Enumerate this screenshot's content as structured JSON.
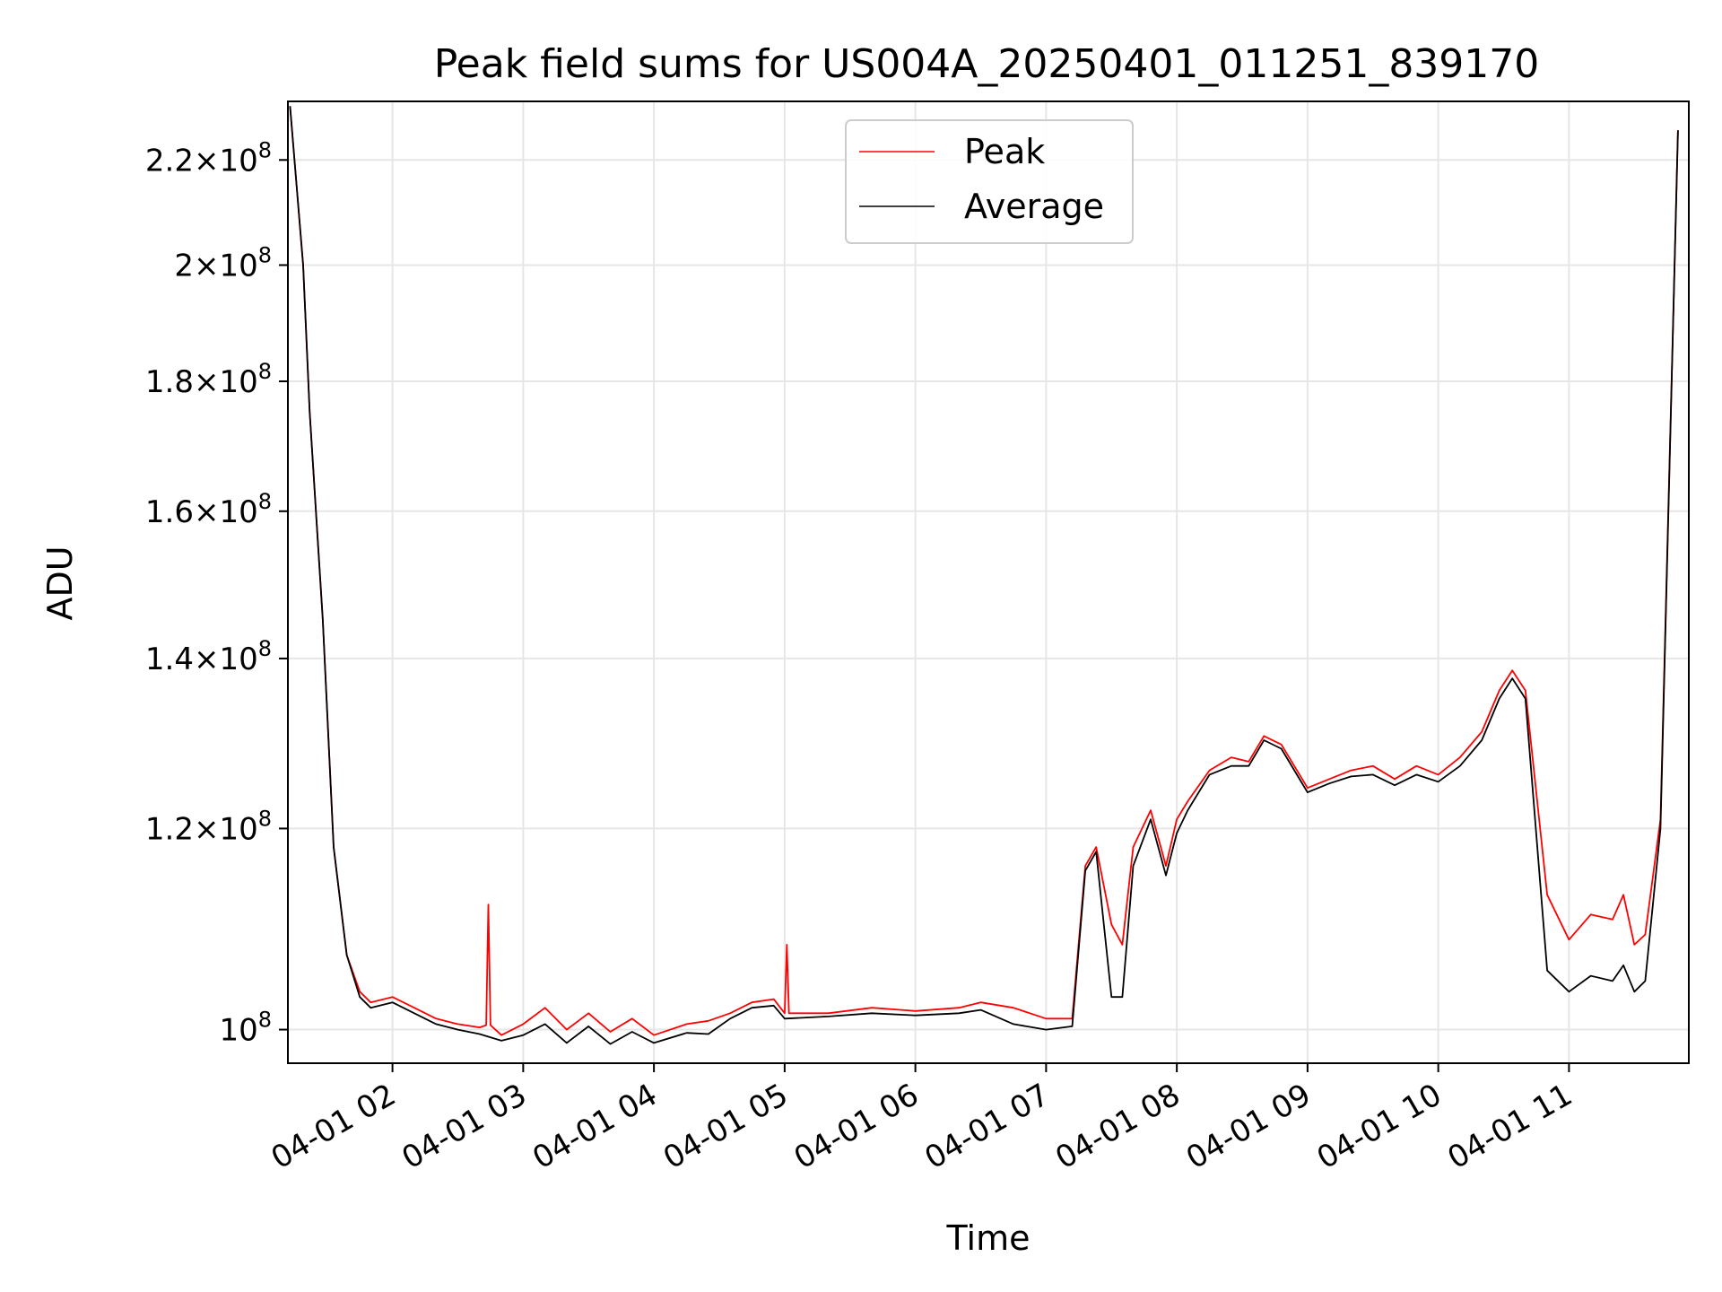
{
  "chart_data": {
    "type": "line",
    "title": "Peak field sums for US004A_20250401_011251_839170",
    "xlabel": "Time",
    "ylabel": "ADU",
    "y_scale": "log",
    "xlim": [
      "2025-04-01 01:12",
      "2025-04-01 11:55"
    ],
    "ylim": [
      97000000,
      232000000
    ],
    "grid": true,
    "legend_position": "top-center",
    "x_ticks": [
      "04-01 02",
      "04-01 03",
      "04-01 04",
      "04-01 05",
      "04-01 06",
      "04-01 07",
      "04-01 08",
      "04-01 09",
      "04-01 10",
      "04-01 11"
    ],
    "y_ticks": [
      {
        "value": 100000000,
        "mantissa": "",
        "exp": "8"
      },
      {
        "value": 120000000,
        "mantissa": "1.2",
        "exp": "8"
      },
      {
        "value": 140000000,
        "mantissa": "1.4",
        "exp": "8"
      },
      {
        "value": 160000000,
        "mantissa": "1.6",
        "exp": "8"
      },
      {
        "value": 180000000,
        "mantissa": "1.8",
        "exp": "8"
      },
      {
        "value": 200000000,
        "mantissa": "2",
        "exp": "8"
      },
      {
        "value": 220000000,
        "mantissa": "2.2",
        "exp": "8"
      }
    ],
    "series": [
      {
        "name": "Peak",
        "color": "#ff0000",
        "x": [
          "2025-04-01 01:13",
          "2025-04-01 01:19",
          "2025-04-01 01:22",
          "2025-04-01 01:28",
          "2025-04-01 01:33",
          "2025-04-01 01:39",
          "2025-04-01 01:45",
          "2025-04-01 01:50",
          "2025-04-01 02:00",
          "2025-04-01 02:10",
          "2025-04-01 02:20",
          "2025-04-01 02:30",
          "2025-04-01 02:40",
          "2025-04-01 02:43",
          "2025-04-01 02:44",
          "2025-04-01 02:45",
          "2025-04-01 02:50",
          "2025-04-01 03:00",
          "2025-04-01 03:10",
          "2025-04-01 03:20",
          "2025-04-01 03:30",
          "2025-04-01 03:40",
          "2025-04-01 03:50",
          "2025-04-01 04:00",
          "2025-04-01 04:15",
          "2025-04-01 04:25",
          "2025-04-01 04:35",
          "2025-04-01 04:45",
          "2025-04-01 04:55",
          "2025-04-01 05:00",
          "2025-04-01 05:01",
          "2025-04-01 05:02",
          "2025-04-01 05:20",
          "2025-04-01 05:40",
          "2025-04-01 06:00",
          "2025-04-01 06:20",
          "2025-04-01 06:30",
          "2025-04-01 06:45",
          "2025-04-01 07:00",
          "2025-04-01 07:12",
          "2025-04-01 07:18",
          "2025-04-01 07:23",
          "2025-04-01 07:30",
          "2025-04-01 07:35",
          "2025-04-01 07:40",
          "2025-04-01 07:48",
          "2025-04-01 07:55",
          "2025-04-01 08:00",
          "2025-04-01 08:05",
          "2025-04-01 08:15",
          "2025-04-01 08:25",
          "2025-04-01 08:33",
          "2025-04-01 08:40",
          "2025-04-01 08:48",
          "2025-04-01 09:00",
          "2025-04-01 09:10",
          "2025-04-01 09:20",
          "2025-04-01 09:30",
          "2025-04-01 09:40",
          "2025-04-01 09:50",
          "2025-04-01 10:00",
          "2025-04-01 10:10",
          "2025-04-01 10:20",
          "2025-04-01 10:28",
          "2025-04-01 10:34",
          "2025-04-01 10:40",
          "2025-04-01 10:50",
          "2025-04-01 11:00",
          "2025-04-01 11:10",
          "2025-04-01 11:20",
          "2025-04-01 11:25",
          "2025-04-01 11:30",
          "2025-04-01 11:35",
          "2025-04-01 11:42",
          "2025-04-01 11:50"
        ],
        "y": [
          231000000,
          200000000,
          175000000,
          145000000,
          118000000,
          107000000,
          103500000,
          102500000,
          103000000,
          102000000,
          101000000,
          100500000,
          100200000,
          100400000,
          112000000,
          100400000,
          99500000,
          100500000,
          102000000,
          100000000,
          101500000,
          99800000,
          101000000,
          99500000,
          100500000,
          100800000,
          101500000,
          102500000,
          102800000,
          101500000,
          108000000,
          101500000,
          101500000,
          102000000,
          101700000,
          102000000,
          102500000,
          102000000,
          101000000,
          101000000,
          116000000,
          118000000,
          110000000,
          108000000,
          118000000,
          122000000,
          116000000,
          121000000,
          123000000,
          126500000,
          128000000,
          127500000,
          130500000,
          129500000,
          124500000,
          125500000,
          126500000,
          127000000,
          125500000,
          127000000,
          126000000,
          128000000,
          131000000,
          136000000,
          138500000,
          136000000,
          113000000,
          108500000,
          111000000,
          110500000,
          113000000,
          108000000,
          109000000,
          121000000,
          226000000
        ]
      },
      {
        "name": "Average",
        "color": "#000000",
        "x": [
          "2025-04-01 01:13",
          "2025-04-01 01:19",
          "2025-04-01 01:22",
          "2025-04-01 01:28",
          "2025-04-01 01:33",
          "2025-04-01 01:39",
          "2025-04-01 01:45",
          "2025-04-01 01:50",
          "2025-04-01 02:00",
          "2025-04-01 02:10",
          "2025-04-01 02:20",
          "2025-04-01 02:30",
          "2025-04-01 02:40",
          "2025-04-01 02:50",
          "2025-04-01 03:00",
          "2025-04-01 03:10",
          "2025-04-01 03:20",
          "2025-04-01 03:30",
          "2025-04-01 03:40",
          "2025-04-01 03:50",
          "2025-04-01 04:00",
          "2025-04-01 04:15",
          "2025-04-01 04:25",
          "2025-04-01 04:35",
          "2025-04-01 04:45",
          "2025-04-01 04:55",
          "2025-04-01 05:00",
          "2025-04-01 05:20",
          "2025-04-01 05:40",
          "2025-04-01 06:00",
          "2025-04-01 06:20",
          "2025-04-01 06:30",
          "2025-04-01 06:45",
          "2025-04-01 07:00",
          "2025-04-01 07:12",
          "2025-04-01 07:18",
          "2025-04-01 07:23",
          "2025-04-01 07:30",
          "2025-04-01 07:35",
          "2025-04-01 07:40",
          "2025-04-01 07:48",
          "2025-04-01 07:55",
          "2025-04-01 08:00",
          "2025-04-01 08:05",
          "2025-04-01 08:15",
          "2025-04-01 08:25",
          "2025-04-01 08:33",
          "2025-04-01 08:40",
          "2025-04-01 08:48",
          "2025-04-01 09:00",
          "2025-04-01 09:10",
          "2025-04-01 09:20",
          "2025-04-01 09:30",
          "2025-04-01 09:40",
          "2025-04-01 09:50",
          "2025-04-01 10:00",
          "2025-04-01 10:10",
          "2025-04-01 10:20",
          "2025-04-01 10:28",
          "2025-04-01 10:34",
          "2025-04-01 10:40",
          "2025-04-01 10:50",
          "2025-04-01 11:00",
          "2025-04-01 11:10",
          "2025-04-01 11:20",
          "2025-04-01 11:25",
          "2025-04-01 11:30",
          "2025-04-01 11:35",
          "2025-04-01 11:42",
          "2025-04-01 11:50"
        ],
        "y": [
          231000000,
          200000000,
          175000000,
          145000000,
          118000000,
          107000000,
          103000000,
          102000000,
          102500000,
          101500000,
          100500000,
          100000000,
          99600000,
          99000000,
          99500000,
          100500000,
          98800000,
          100300000,
          98700000,
          99800000,
          98800000,
          99700000,
          99600000,
          101000000,
          102000000,
          102200000,
          101000000,
          101200000,
          101500000,
          101300000,
          101500000,
          101800000,
          100500000,
          100000000,
          100300000,
          115500000,
          117500000,
          103000000,
          103000000,
          116000000,
          121000000,
          115000000,
          119500000,
          122000000,
          126000000,
          127000000,
          127000000,
          130000000,
          129000000,
          124000000,
          125000000,
          125800000,
          126000000,
          124800000,
          126000000,
          125200000,
          127000000,
          130000000,
          135000000,
          137500000,
          135000000,
          105500000,
          103500000,
          105000000,
          104500000,
          106000000,
          103500000,
          104500000,
          120000000,
          226000000
        ]
      }
    ]
  }
}
